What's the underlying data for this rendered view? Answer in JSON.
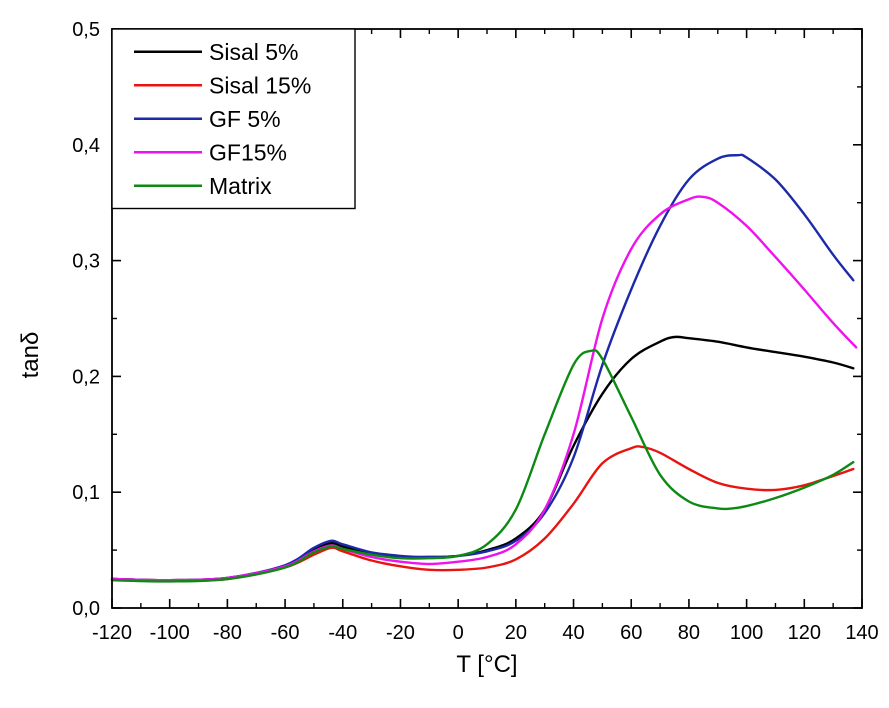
{
  "chart_data": {
    "type": "line",
    "xlabel": "T [°C]",
    "ylabel": "tanδ",
    "xlim": [
      -120,
      140
    ],
    "ylim": [
      0,
      0.5
    ],
    "x_ticks": [
      "-120",
      "-100",
      "-80",
      "-60",
      "-40",
      "-20",
      "0",
      "20",
      "40",
      "60",
      "80",
      "100",
      "120",
      "140"
    ],
    "y_ticks": [
      "0,0",
      "0,1",
      "0,2",
      "0,3",
      "0,4",
      "0,5"
    ],
    "legend_position": "top-left",
    "grid": false,
    "series": [
      {
        "name": "Sisal 5%",
        "color": "#000000",
        "x": [
          -120,
          -100,
          -80,
          -60,
          -50,
          -44,
          -40,
          -30,
          -20,
          -10,
          0,
          10,
          20,
          30,
          40,
          50,
          60,
          70,
          75,
          80,
          90,
          100,
          110,
          120,
          130,
          137
        ],
        "y": [
          0.025,
          0.024,
          0.026,
          0.036,
          0.05,
          0.056,
          0.053,
          0.047,
          0.044,
          0.044,
          0.045,
          0.05,
          0.06,
          0.085,
          0.14,
          0.185,
          0.215,
          0.23,
          0.234,
          0.233,
          0.23,
          0.225,
          0.221,
          0.217,
          0.212,
          0.207
        ]
      },
      {
        "name": "Sisal 15%",
        "color": "#e8140f",
        "x": [
          -120,
          -100,
          -80,
          -60,
          -50,
          -44,
          -40,
          -30,
          -20,
          -10,
          0,
          10,
          20,
          30,
          40,
          50,
          60,
          64,
          70,
          80,
          90,
          100,
          110,
          120,
          130,
          137
        ],
        "y": [
          0.025,
          0.024,
          0.025,
          0.035,
          0.046,
          0.052,
          0.049,
          0.041,
          0.036,
          0.033,
          0.033,
          0.035,
          0.042,
          0.06,
          0.09,
          0.125,
          0.138,
          0.139,
          0.134,
          0.12,
          0.108,
          0.103,
          0.102,
          0.106,
          0.114,
          0.12
        ]
      },
      {
        "name": "GF 5%",
        "color": "#1c2aa8",
        "x": [
          -120,
          -100,
          -80,
          -60,
          -50,
          -44,
          -40,
          -30,
          -20,
          -10,
          0,
          10,
          20,
          30,
          40,
          50,
          60,
          70,
          80,
          90,
          97,
          100,
          110,
          120,
          130,
          137
        ],
        "y": [
          0.025,
          0.024,
          0.026,
          0.037,
          0.052,
          0.058,
          0.055,
          0.048,
          0.045,
          0.044,
          0.045,
          0.049,
          0.058,
          0.082,
          0.13,
          0.21,
          0.275,
          0.33,
          0.37,
          0.388,
          0.391,
          0.389,
          0.37,
          0.34,
          0.305,
          0.283
        ]
      },
      {
        "name": "GF15%",
        "color": "#ee12ee",
        "x": [
          -120,
          -100,
          -80,
          -60,
          -50,
          -44,
          -40,
          -30,
          -20,
          -10,
          0,
          10,
          20,
          30,
          40,
          50,
          60,
          70,
          80,
          85,
          90,
          100,
          110,
          120,
          130,
          138
        ],
        "y": [
          0.025,
          0.024,
          0.026,
          0.036,
          0.049,
          0.054,
          0.051,
          0.044,
          0.04,
          0.038,
          0.04,
          0.044,
          0.055,
          0.085,
          0.15,
          0.25,
          0.31,
          0.34,
          0.353,
          0.355,
          0.35,
          0.33,
          0.303,
          0.275,
          0.246,
          0.225
        ]
      },
      {
        "name": "Matrix",
        "color": "#0d8a14",
        "x": [
          -120,
          -100,
          -80,
          -60,
          -50,
          -44,
          -40,
          -30,
          -20,
          -10,
          0,
          10,
          20,
          30,
          40,
          46,
          50,
          60,
          70,
          80,
          90,
          95,
          100,
          110,
          120,
          130,
          137
        ],
        "y": [
          0.024,
          0.023,
          0.025,
          0.035,
          0.048,
          0.053,
          0.051,
          0.046,
          0.043,
          0.043,
          0.045,
          0.055,
          0.085,
          0.15,
          0.21,
          0.222,
          0.215,
          0.165,
          0.115,
          0.092,
          0.086,
          0.086,
          0.088,
          0.095,
          0.104,
          0.115,
          0.126
        ]
      }
    ]
  }
}
